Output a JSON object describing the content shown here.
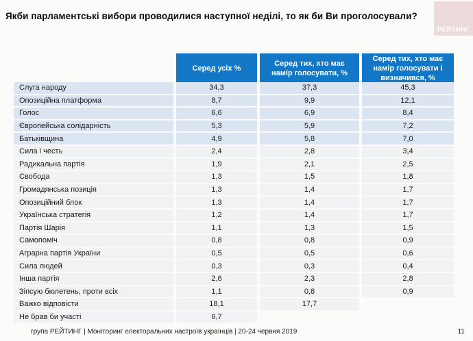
{
  "title": "Якби парламентські вибори проводилися наступної неділі, то як би Ви проголосували?",
  "logo": {
    "text": "РЕЙТИНГ"
  },
  "colors": {
    "header_blue": "#1377c8",
    "row_highlight_blue": "#dbe5f1",
    "row_gray": "#f1f2f3",
    "logo_pink": "#eddada"
  },
  "table": {
    "column_headers": [
      "Серед усіх %",
      "Серед тих, хто має намір голосувати, %",
      "Серед тих, хто має намір голосувати і визначився, %"
    ],
    "rows": [
      {
        "label": "Слуга народу",
        "values": [
          "34,3",
          "37,3",
          "45,3"
        ],
        "highlight": true
      },
      {
        "label": "Опозиційна платформа",
        "values": [
          "8,7",
          "9,9",
          "12,1"
        ],
        "highlight": true
      },
      {
        "label": "Голос",
        "values": [
          "6,6",
          "6,9",
          "8,4"
        ],
        "highlight": true
      },
      {
        "label": "Європейська солідарність",
        "values": [
          "5,3",
          "5,9",
          "7,2"
        ],
        "highlight": true
      },
      {
        "label": "Батьківщина",
        "values": [
          "4,9",
          "5,8",
          "7,0"
        ],
        "highlight": true
      },
      {
        "label": "Сила і честь",
        "values": [
          "2,4",
          "2,8",
          "3,4"
        ],
        "highlight": false
      },
      {
        "label": "Радикальна партія",
        "values": [
          "1,9",
          "2,1",
          "2,5"
        ],
        "highlight": false
      },
      {
        "label": "Свобода",
        "values": [
          "1,3",
          "1,5",
          "1,8"
        ],
        "highlight": false
      },
      {
        "label": "Громадянська позиція",
        "values": [
          "1,3",
          "1,4",
          "1,7"
        ],
        "highlight": false
      },
      {
        "label": "Опозиційний блок",
        "values": [
          "1,3",
          "1,4",
          "1,7"
        ],
        "highlight": false
      },
      {
        "label": "Українська стратегія",
        "values": [
          "1,2",
          "1,4",
          "1,7"
        ],
        "highlight": false
      },
      {
        "label": "Партія Шарія",
        "values": [
          "1,1",
          "1,3",
          "1,5"
        ],
        "highlight": false
      },
      {
        "label": "Самопоміч",
        "values": [
          "0,8",
          "0,8",
          "0,9"
        ],
        "highlight": false
      },
      {
        "label": "Аграрна партія України",
        "values": [
          "0,5",
          "0,5",
          "0,6"
        ],
        "highlight": false
      },
      {
        "label": "Сила людей",
        "values": [
          "0,3",
          "0,3",
          "0,4"
        ],
        "highlight": false
      },
      {
        "label": "Інша партія",
        "values": [
          "2,6",
          "2,3",
          "2,8"
        ],
        "highlight": false
      },
      {
        "label": "Зіпсую бюлетень, проти всіх",
        "values": [
          "1,1",
          "0,8",
          "0,9"
        ],
        "highlight": false
      },
      {
        "label": "Важко відповісти",
        "values": [
          "18,1",
          "17,7",
          null
        ],
        "highlight": false
      },
      {
        "label": "Не брав би участі",
        "values": [
          "6,7",
          null,
          null
        ],
        "highlight": false
      }
    ]
  },
  "footer": {
    "source": "група РЕЙТИНГ | Моніторинг електоральних настроїв українців | 20-24 червня 2019",
    "page": "11"
  },
  "chart_data": {
    "type": "table",
    "title": "Якби парламентські вибори проводилися наступної неділі, то як би Ви проголосували?",
    "categories": [
      "Слуга народу",
      "Опозиційна платформа",
      "Голос",
      "Європейська солідарність",
      "Батьківщина",
      "Сила і честь",
      "Радикальна партія",
      "Свобода",
      "Громадянська позиція",
      "Опозиційний блок",
      "Українська стратегія",
      "Партія Шарія",
      "Самопоміч",
      "Аграрна партія України",
      "Сила людей",
      "Інша партія",
      "Зіпсую бюлетень, проти всіх",
      "Важко відповісти",
      "Не брав би участі"
    ],
    "series": [
      {
        "name": "Серед усіх %",
        "values": [
          34.3,
          8.7,
          6.6,
          5.3,
          4.9,
          2.4,
          1.9,
          1.3,
          1.3,
          1.3,
          1.2,
          1.1,
          0.8,
          0.5,
          0.3,
          2.6,
          1.1,
          18.1,
          6.7
        ]
      },
      {
        "name": "Серед тих, хто має намір голосувати, %",
        "values": [
          37.3,
          9.9,
          6.9,
          5.9,
          5.8,
          2.8,
          2.1,
          1.5,
          1.4,
          1.4,
          1.4,
          1.3,
          0.8,
          0.5,
          0.3,
          2.3,
          0.8,
          17.7,
          null
        ]
      },
      {
        "name": "Серед тих, хто має намір голосувати і визначився, %",
        "values": [
          45.3,
          12.1,
          8.4,
          7.2,
          7.0,
          3.4,
          2.5,
          1.8,
          1.7,
          1.7,
          1.7,
          1.5,
          0.9,
          0.6,
          0.4,
          2.8,
          0.9,
          null,
          null
        ]
      }
    ],
    "legend_position": "top",
    "grid": false
  }
}
